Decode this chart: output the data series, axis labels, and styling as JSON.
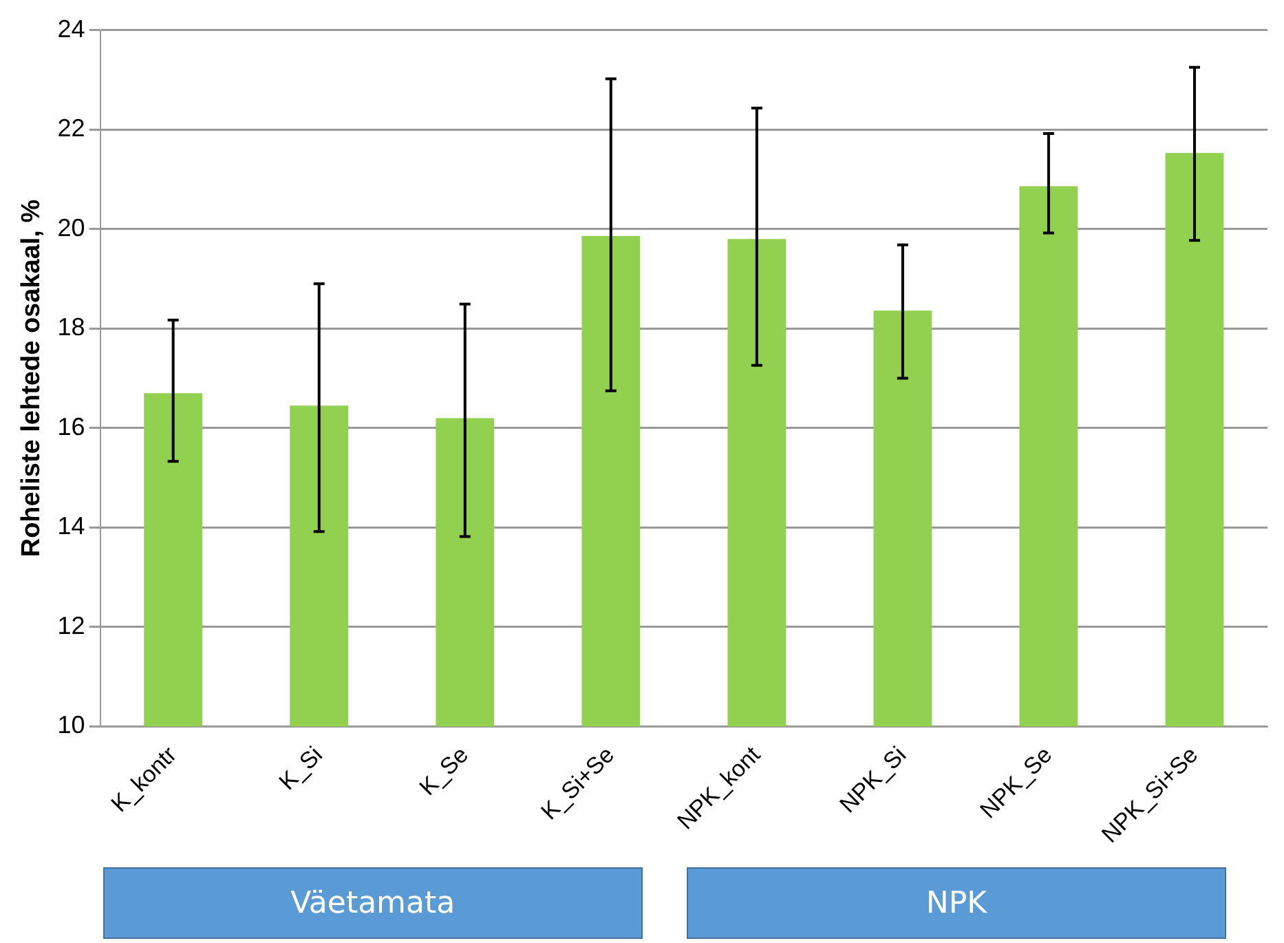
{
  "chart_data": {
    "type": "bar",
    "ylabel": "Roheliste lehtede osakaal, %",
    "categories": [
      "K_kontr",
      "K_Si",
      "K_Se",
      "K_Si+Se",
      "NPK_kont",
      "NPK_Si",
      "NPK_Se",
      "NPK_Si+Se"
    ],
    "values": [
      16.7,
      16.45,
      16.2,
      19.86,
      19.8,
      18.36,
      20.86,
      21.53
    ],
    "errors": [
      [
        15.33,
        18.17
      ],
      [
        13.92,
        18.9
      ],
      [
        13.82,
        18.49
      ],
      [
        16.75,
        23.02
      ],
      [
        17.26,
        22.43
      ],
      [
        17.0,
        19.68
      ],
      [
        19.92,
        21.92
      ],
      [
        19.77,
        23.25
      ]
    ],
    "color": "#92d050",
    "ylim": [
      10,
      24
    ],
    "yticks": [
      10,
      12,
      14,
      16,
      18,
      20,
      22,
      24
    ],
    "grid": "y",
    "legend": false,
    "annotations": [
      "Väetamata",
      "NPK"
    ]
  }
}
